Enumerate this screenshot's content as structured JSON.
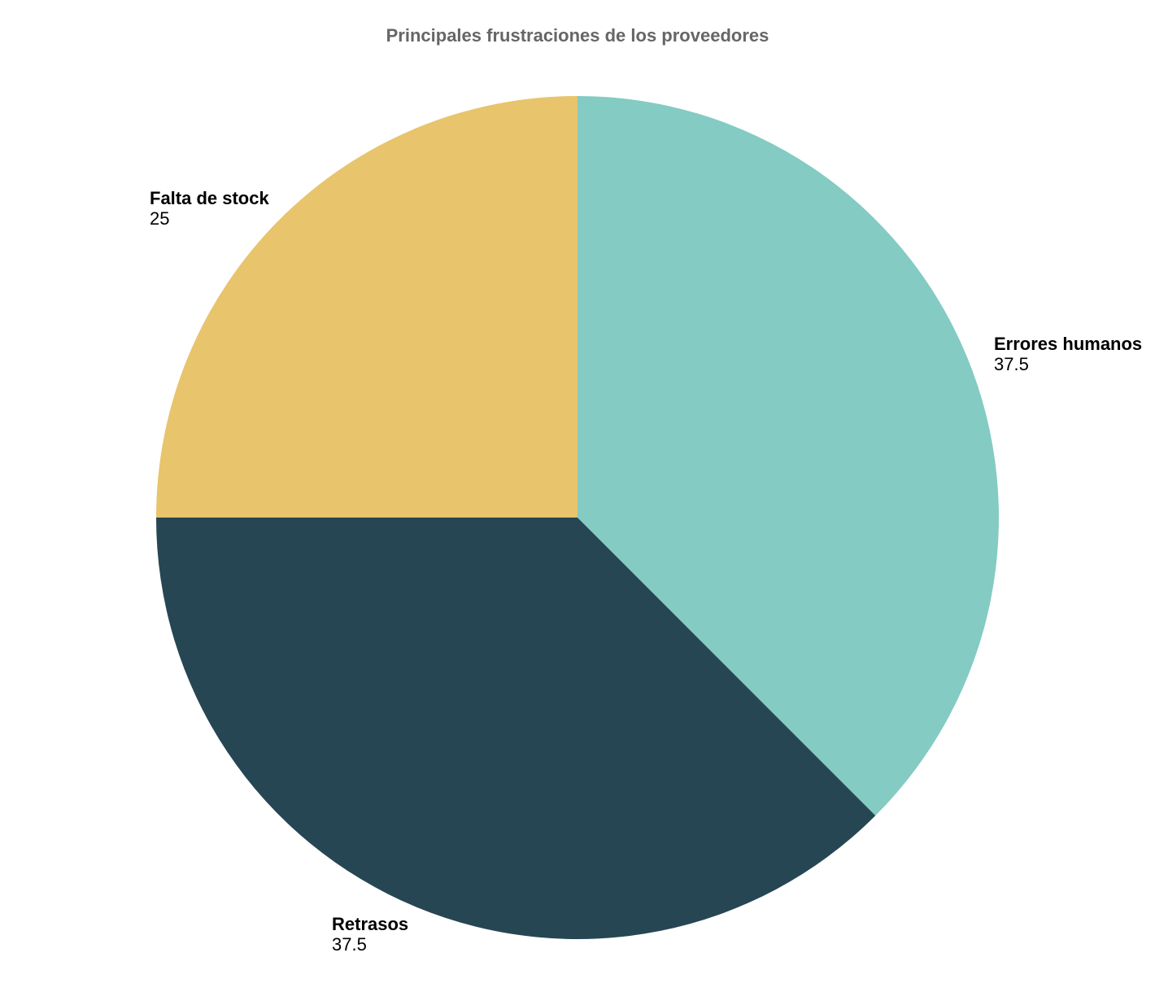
{
  "chart_data": {
    "type": "pie",
    "title": "Principales frustraciones de los proveedores",
    "slices": [
      {
        "label": "Errores humanos",
        "value": 37.5,
        "value_label": "37.5",
        "color": "#83cbc3"
      },
      {
        "label": "Retrasos",
        "value": 37.5,
        "value_label": "37.5",
        "color": "#274653"
      },
      {
        "label": "Falta de stock",
        "value": 25,
        "value_label": "25",
        "color": "#e8c46c"
      }
    ],
    "start_angle": "12 o'clock",
    "direction": "clockwise",
    "legend": "none",
    "title_color": "#666666",
    "label_color": "#000000"
  }
}
